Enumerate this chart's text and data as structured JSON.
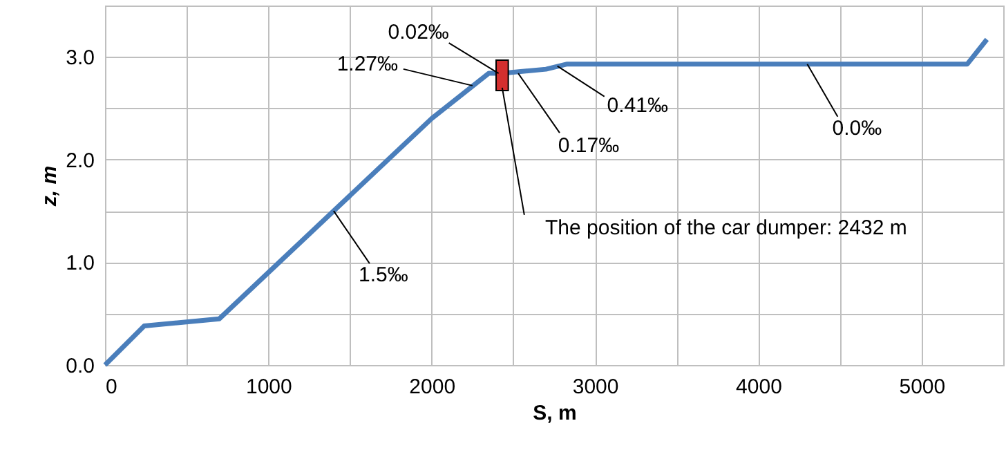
{
  "chart_data": {
    "type": "line",
    "xlabel": "S, m",
    "ylabel": "z, m",
    "x": [
      0,
      240,
      700,
      2000,
      2350,
      2432,
      2700,
      2830,
      5280,
      5400
    ],
    "series": [
      {
        "color": "#4a7ebb",
        "values": [
          0,
          0.38,
          0.45,
          2.4,
          2.84,
          2.84,
          2.88,
          2.93,
          2.93,
          3.17
        ]
      },
      {
        "type": "scatter",
        "color": "#d32f2f",
        "x": [
          2432
        ],
        "values": [
          2.82
        ],
        "marker": "square"
      }
    ],
    "xlim": [
      0,
      5500
    ],
    "ylim": [
      0,
      3.5
    ],
    "xticks": [
      0,
      {
        "value": 500,
        "label": null
      },
      1000,
      {
        "value": 1500,
        "label": null
      },
      2000,
      {
        "value": 2500,
        "label": null
      },
      3000,
      {
        "value": 3500,
        "label": null
      },
      4000,
      {
        "value": 4500,
        "label": null
      },
      5000,
      {
        "value": 5500,
        "label": null
      }
    ],
    "yticks": [
      {
        "value": 0,
        "label": "0.0"
      },
      {
        "value": 0.5,
        "label": null
      },
      {
        "value": 1,
        "label": "1.0"
      },
      {
        "value": 1.5,
        "label": null
      },
      {
        "value": 2,
        "label": "2.0"
      },
      {
        "value": 2.5,
        "label": null
      },
      {
        "value": 3,
        "label": "3.0"
      },
      {
        "value": 3.5,
        "label": null
      }
    ],
    "grid": true,
    "marker": "none",
    "line_style": "solid",
    "annotations": [
      {
        "text": "0.02‰",
        "x": 2410,
        "y": 2.84
      },
      {
        "text": "1.27‰",
        "x": 2250,
        "y": 2.72
      },
      {
        "text": "0.17‰",
        "x": 2530,
        "y": 2.84
      },
      {
        "text": "0.41‰",
        "x": 2770,
        "y": 2.91
      },
      {
        "text": "0.0‰",
        "x": 4300,
        "y": 2.93
      },
      {
        "text": "1.5‰",
        "x": 1400,
        "y": 1.5
      },
      {
        "text": "The position of the car dumper: 2432 m",
        "x": 2432,
        "y": 2.7
      }
    ]
  }
}
